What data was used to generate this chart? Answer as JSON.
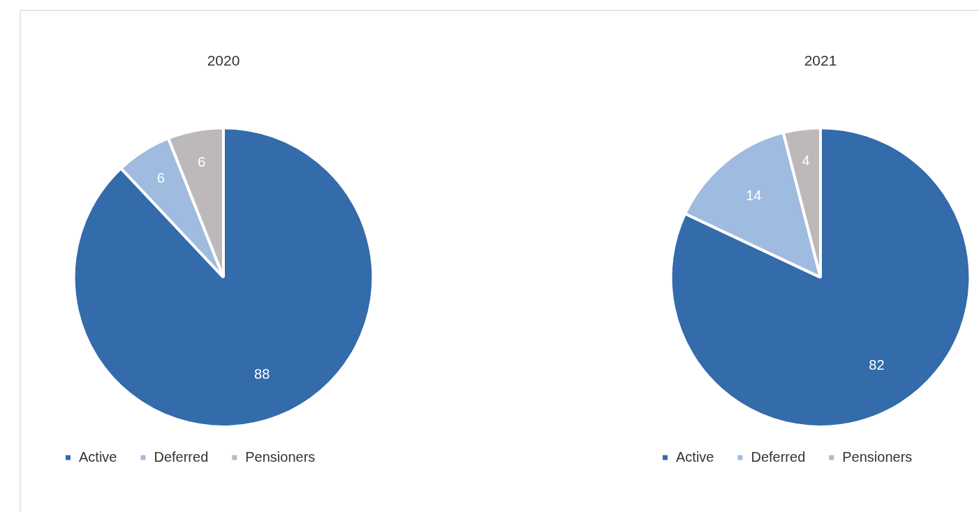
{
  "chart_data": [
    {
      "type": "pie",
      "title": "2020",
      "categories": [
        "Active",
        "Deferred",
        "Pensioners"
      ],
      "values": [
        88,
        6,
        6
      ],
      "colors": [
        "#336bab",
        "#a0bbe0",
        "#bdb9bb"
      ],
      "data_labels": true,
      "legend": "bottom"
    },
    {
      "type": "pie",
      "title": "2021",
      "categories": [
        "Active",
        "Deferred",
        "Pensioners"
      ],
      "values": [
        82,
        14,
        4
      ],
      "colors": [
        "#336bab",
        "#a0bbe0",
        "#bdb9bb"
      ],
      "data_labels": true,
      "legend": "bottom"
    }
  ]
}
